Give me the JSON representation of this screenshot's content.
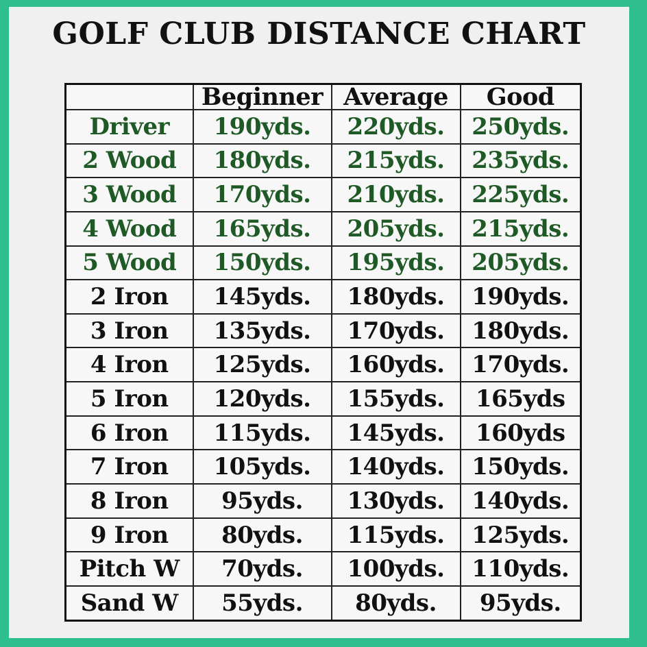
{
  "title": "GOLF CLUB DISTANCE CHART",
  "colors": {
    "border": "#2fbf8e",
    "background": "#f0f0f0",
    "woods_text": "#1f5a26",
    "irons_text": "#111111"
  },
  "table": {
    "headers": [
      "",
      "Beginner",
      "Average",
      "Good"
    ],
    "rows": [
      {
        "club": "Driver",
        "beginner": "190yds.",
        "average": "220yds.",
        "good": "250yds.",
        "color": "green"
      },
      {
        "club": "2 Wood",
        "beginner": "180yds.",
        "average": "215yds.",
        "good": "235yds.",
        "color": "green"
      },
      {
        "club": "3 Wood",
        "beginner": "170yds.",
        "average": "210yds.",
        "good": "225yds.",
        "color": "green"
      },
      {
        "club": "4 Wood",
        "beginner": "165yds.",
        "average": "205yds.",
        "good": "215yds.",
        "color": "green"
      },
      {
        "club": "5 Wood",
        "beginner": "150yds.",
        "average": "195yds.",
        "good": "205yds.",
        "color": "green"
      },
      {
        "club": "2 Iron",
        "beginner": "145yds.",
        "average": "180yds.",
        "good": "190yds.",
        "color": "black"
      },
      {
        "club": "3 Iron",
        "beginner": "135yds.",
        "average": "170yds.",
        "good": "180yds.",
        "color": "black"
      },
      {
        "club": "4 Iron",
        "beginner": "125yds.",
        "average": "160yds.",
        "good": "170yds.",
        "color": "black"
      },
      {
        "club": "5 Iron",
        "beginner": "120yds.",
        "average": "155yds.",
        "good": "165yds",
        "color": "black"
      },
      {
        "club": "6 Iron",
        "beginner": "115yds.",
        "average": "145yds.",
        "good": "160yds",
        "color": "black"
      },
      {
        "club": "7 Iron",
        "beginner": "105yds.",
        "average": "140yds.",
        "good": "150yds.",
        "color": "black"
      },
      {
        "club": "8 Iron",
        "beginner": "95yds.",
        "average": "130yds.",
        "good": "140yds.",
        "color": "black"
      },
      {
        "club": "9 Iron",
        "beginner": "80yds.",
        "average": "115yds.",
        "good": "125yds.",
        "color": "black"
      },
      {
        "club": "Pitch W",
        "beginner": "70yds.",
        "average": "100yds.",
        "good": "110yds.",
        "color": "black"
      },
      {
        "club": "Sand W",
        "beginner": "55yds.",
        "average": "80yds.",
        "good": "95yds.",
        "color": "black"
      }
    ]
  }
}
